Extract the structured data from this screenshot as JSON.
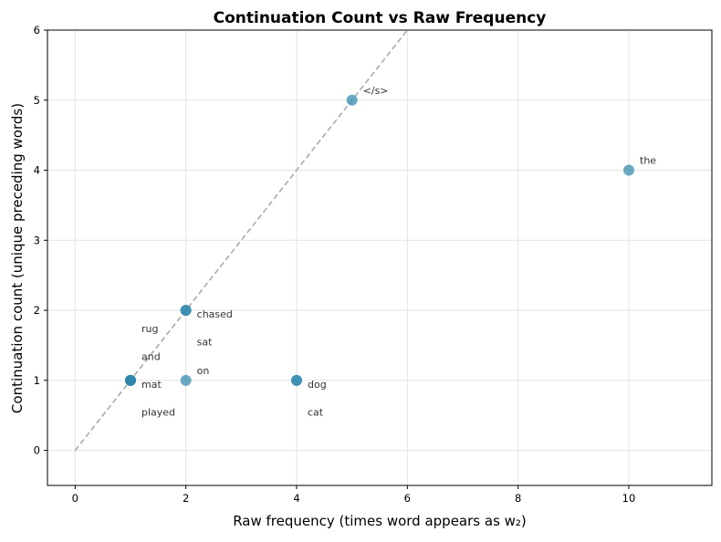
{
  "chart_data": {
    "type": "scatter",
    "title": "Continuation Count vs Raw Frequency",
    "xlabel": "Raw frequency (times word appears as w₂)",
    "ylabel": "Continuation count (unique preceding words)",
    "xlim": [
      -0.5,
      11.5
    ],
    "ylim": [
      -0.5,
      6
    ],
    "xticks": [
      0,
      2,
      4,
      6,
      8,
      10
    ],
    "yticks": [
      0,
      1,
      2,
      3,
      4,
      5,
      6
    ],
    "grid": true,
    "point_color": "#2E86AB",
    "reference_line": {
      "style": "dashed",
      "color": "#aaaaaa",
      "x": [
        0,
        6
      ],
      "y": [
        0,
        6
      ]
    },
    "points": [
      {
        "word": "rug",
        "x": 1,
        "y": 1
      },
      {
        "word": "and",
        "x": 1,
        "y": 1
      },
      {
        "word": "mat",
        "x": 1,
        "y": 1
      },
      {
        "word": "played",
        "x": 1,
        "y": 1
      },
      {
        "word": "chased",
        "x": 2,
        "y": 2
      },
      {
        "word": "sat",
        "x": 2,
        "y": 2
      },
      {
        "word": "on",
        "x": 2,
        "y": 1
      },
      {
        "word": "dog",
        "x": 4,
        "y": 1
      },
      {
        "word": "cat",
        "x": 4,
        "y": 1
      },
      {
        "word": "</s>",
        "x": 5,
        "y": 5
      },
      {
        "word": "the",
        "x": 10,
        "y": 4
      }
    ]
  }
}
